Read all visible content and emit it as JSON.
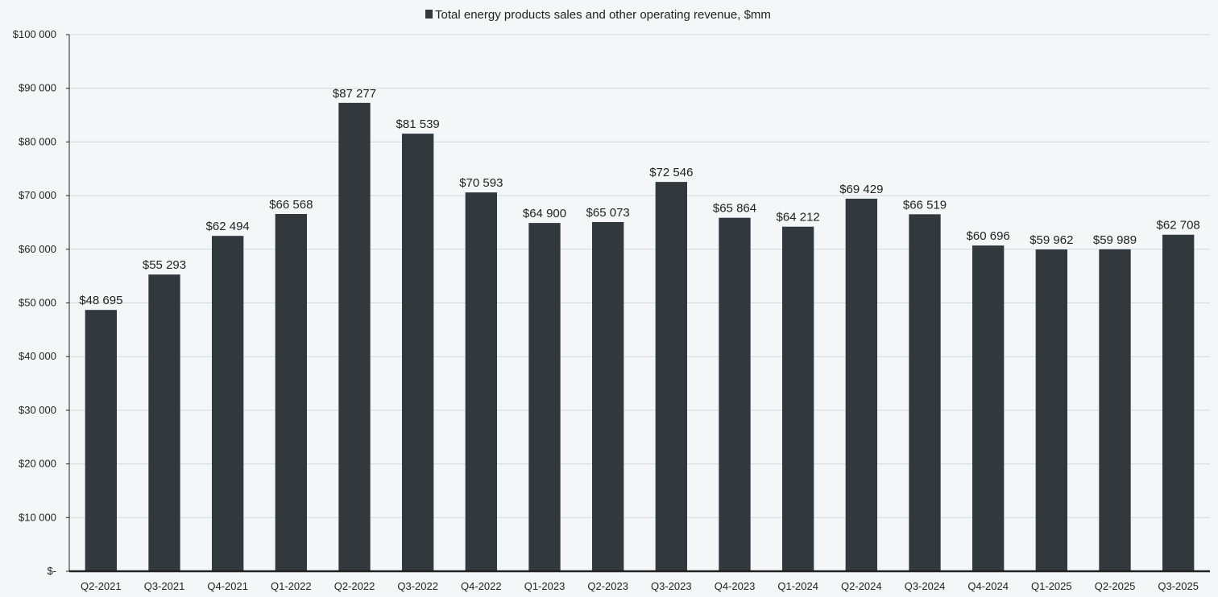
{
  "chart_data": {
    "type": "bar",
    "title": "",
    "xlabel": "",
    "ylabel": "",
    "ylim": [
      0,
      100000
    ],
    "grid": true,
    "legend": "top-center",
    "legend_entries": [
      "Total energy products sales and other operating revenue, $mm"
    ],
    "y_tick_labels": [
      "$-",
      "$10 000",
      "$20 000",
      "$30 000",
      "$40 000",
      "$50 000",
      "$60 000",
      "$70 000",
      "$80 000",
      "$90 000",
      "$100 000"
    ],
    "y_ticks": [
      0,
      10000,
      20000,
      30000,
      40000,
      50000,
      60000,
      70000,
      80000,
      90000,
      100000
    ],
    "categories": [
      "Q2-2021",
      "Q3-2021",
      "Q4-2021",
      "Q1-2022",
      "Q2-2022",
      "Q3-2022",
      "Q4-2022",
      "Q1-2023",
      "Q2-2023",
      "Q3-2023",
      "Q4-2023",
      "Q1-2024",
      "Q2-2024",
      "Q3-2024",
      "Q4-2024",
      "Q1-2025",
      "Q2-2025",
      "Q3-2025"
    ],
    "series": [
      {
        "name": "Total energy products sales and other operating revenue, $mm",
        "values": [
          48695,
          55293,
          62494,
          66568,
          87277,
          81539,
          70593,
          64900,
          65073,
          72546,
          65864,
          64212,
          69429,
          66519,
          60696,
          59962,
          59989,
          62708
        ],
        "labels": [
          "$48 695",
          "$55 293",
          "$62 494",
          "$66 568",
          "$87 277",
          "$81 539",
          "$70 593",
          "$64 900",
          "$65 073",
          "$72 546",
          "$65 864",
          "$64 212",
          "$69 429",
          "$66 519",
          "$60 696",
          "$59 962",
          "$59 989",
          "$62 708"
        ]
      }
    ]
  },
  "colors": {
    "bar": "#32393d",
    "grid": "#d4d7da",
    "axis": "#222222",
    "background": "#f4f6f8"
  }
}
